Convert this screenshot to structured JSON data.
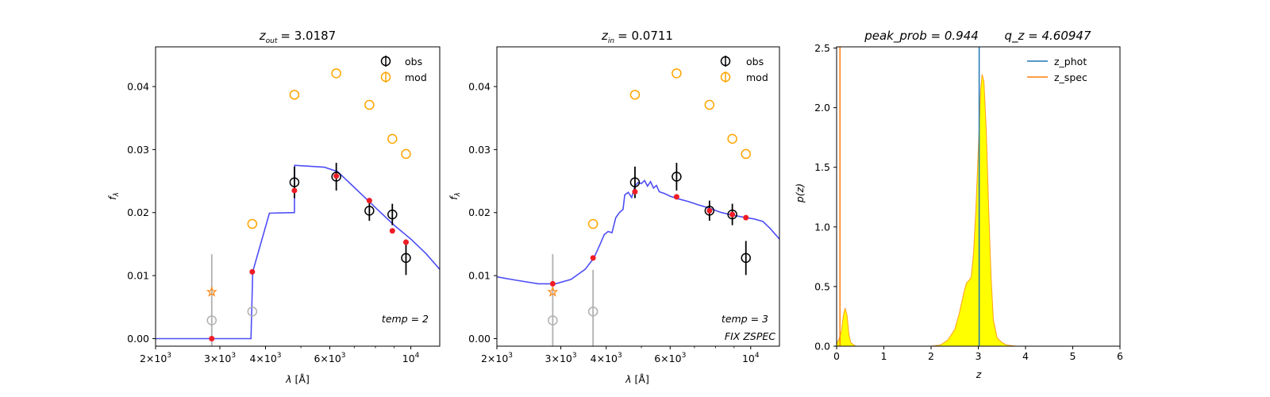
{
  "chart_data": [
    {
      "type": "scatter",
      "title": {
        "var": "z",
        "sub": "out",
        "value": "= 3.0187"
      },
      "xlabel": {
        "lambda": "λ",
        "unit": " [Å]"
      },
      "ylabel": {
        "main": "f",
        "sub": "λ"
      },
      "xscale": "log",
      "xlim": [
        2000,
        12000
      ],
      "ylim": [
        -0.0012,
        0.0463
      ],
      "xticks": [
        {
          "v": 2000,
          "m": "2",
          "e": "3"
        },
        {
          "v": 3000,
          "m": "3",
          "e": "3"
        },
        {
          "v": 4000,
          "m": "4",
          "e": "3"
        },
        {
          "v": 6000,
          "m": "6",
          "e": "3"
        },
        {
          "v": 10000,
          "m": "",
          "e": "4"
        }
      ],
      "yticks": [
        {
          "v": 0.0,
          "l": "0.00"
        },
        {
          "v": 0.01,
          "l": "0.01"
        },
        {
          "v": 0.02,
          "l": "0.02"
        },
        {
          "v": 0.03,
          "l": "0.03"
        },
        {
          "v": 0.04,
          "l": "0.04"
        }
      ],
      "legend": {
        "obs": "obs",
        "mod": "mod"
      },
      "annotations": [
        {
          "text": "temp = 2"
        }
      ],
      "template": [
        [
          2000,
          0
        ],
        [
          3650,
          0
        ],
        [
          3690,
          0.0106
        ],
        [
          4100,
          0.0199
        ],
        [
          4800,
          0.02
        ],
        [
          4810,
          0.0275
        ],
        [
          5800,
          0.0272
        ],
        [
          6300,
          0.0265
        ],
        [
          7000,
          0.024
        ],
        [
          8000,
          0.0208
        ],
        [
          9000,
          0.018
        ],
        [
          10000,
          0.0158
        ],
        [
          11000,
          0.0135
        ],
        [
          12000,
          0.011
        ]
      ],
      "model": [
        [
          2850,
          0.0
        ],
        [
          3680,
          0.0106
        ],
        [
          4800,
          0.0235
        ],
        [
          6250,
          0.0258
        ],
        [
          7700,
          0.0219
        ],
        [
          8900,
          0.0171
        ],
        [
          9700,
          0.0153
        ]
      ],
      "obs": [
        {
          "x": 4800,
          "y": 0.0248,
          "e": 0.0025
        },
        {
          "x": 6250,
          "y": 0.0257,
          "e": 0.0022
        },
        {
          "x": 7700,
          "y": 0.0203,
          "e": 0.0016
        },
        {
          "x": 8900,
          "y": 0.0197,
          "e": 0.0017
        },
        {
          "x": 9700,
          "y": 0.0128,
          "e": 0.0027
        }
      ],
      "obs_faint": [
        {
          "x": 2850,
          "y": 0.0029,
          "e": 0.0105
        },
        {
          "x": 3680,
          "y": 0.0043,
          "e": 0.0
        }
      ],
      "mod_pts": [
        [
          3680,
          0.0182
        ],
        [
          4800,
          0.0387
        ],
        [
          6250,
          0.0421
        ],
        [
          7700,
          0.0371
        ],
        [
          8900,
          0.0317
        ],
        [
          9700,
          0.0293
        ]
      ],
      "star": [
        2850,
        0.0074
      ]
    },
    {
      "type": "scatter",
      "title": {
        "var": "z",
        "sub": "in",
        "value": "= 0.0711"
      },
      "xlabel": {
        "lambda": "λ",
        "unit": " [Å]"
      },
      "ylabel": {
        "main": "f",
        "sub": "λ"
      },
      "xscale": "log",
      "xlim": [
        2000,
        12000
      ],
      "ylim": [
        -0.0012,
        0.0463
      ],
      "xticks": [
        {
          "v": 2000,
          "m": "2",
          "e": "3"
        },
        {
          "v": 3000,
          "m": "3",
          "e": "3"
        },
        {
          "v": 4000,
          "m": "4",
          "e": "3"
        },
        {
          "v": 6000,
          "m": "6",
          "e": "3"
        },
        {
          "v": 10000,
          "m": "",
          "e": "4"
        }
      ],
      "yticks": [
        {
          "v": 0.0,
          "l": "0.00"
        },
        {
          "v": 0.01,
          "l": "0.01"
        },
        {
          "v": 0.02,
          "l": "0.02"
        },
        {
          "v": 0.03,
          "l": "0.03"
        },
        {
          "v": 0.04,
          "l": "0.04"
        }
      ],
      "legend": {
        "obs": "obs",
        "mod": "mod"
      },
      "annotations": [
        {
          "text": "temp = 3"
        },
        {
          "text": "FIX ZSPEC"
        }
      ],
      "template": [
        [
          2000,
          0.0098
        ],
        [
          2300,
          0.0092
        ],
        [
          2600,
          0.0087
        ],
        [
          2900,
          0.0087
        ],
        [
          3200,
          0.0094
        ],
        [
          3500,
          0.011
        ],
        [
          3700,
          0.0128
        ],
        [
          3850,
          0.015
        ],
        [
          3950,
          0.0165
        ],
        [
          4050,
          0.017
        ],
        [
          4150,
          0.0168
        ],
        [
          4250,
          0.0192
        ],
        [
          4350,
          0.02
        ],
        [
          4450,
          0.0205
        ],
        [
          4500,
          0.0228
        ],
        [
          4600,
          0.0232
        ],
        [
          4700,
          0.0224
        ],
        [
          4800,
          0.0242
        ],
        [
          4900,
          0.0248
        ],
        [
          5000,
          0.0246
        ],
        [
          5100,
          0.0251
        ],
        [
          5200,
          0.0242
        ],
        [
          5300,
          0.0249
        ],
        [
          5400,
          0.0239
        ],
        [
          5500,
          0.0243
        ],
        [
          5600,
          0.0233
        ],
        [
          5800,
          0.023
        ],
        [
          6000,
          0.0226
        ],
        [
          6300,
          0.0222
        ],
        [
          6700,
          0.0218
        ],
        [
          7200,
          0.0212
        ],
        [
          7700,
          0.0207
        ],
        [
          8300,
          0.02
        ],
        [
          8900,
          0.0196
        ],
        [
          9500,
          0.0193
        ],
        [
          10200,
          0.019
        ],
        [
          10800,
          0.0186
        ],
        [
          11300,
          0.0175
        ],
        [
          12000,
          0.0158
        ]
      ],
      "model": [
        [
          2850,
          0.0087
        ],
        [
          3680,
          0.0128
        ],
        [
          4800,
          0.0233
        ],
        [
          6250,
          0.0225
        ],
        [
          7700,
          0.0203
        ],
        [
          8900,
          0.0197
        ],
        [
          9700,
          0.0192
        ]
      ],
      "obs": [
        {
          "x": 4800,
          "y": 0.0248,
          "e": 0.0025
        },
        {
          "x": 6250,
          "y": 0.0257,
          "e": 0.0022
        },
        {
          "x": 7700,
          "y": 0.0203,
          "e": 0.0016
        },
        {
          "x": 8900,
          "y": 0.0197,
          "e": 0.0017
        },
        {
          "x": 9700,
          "y": 0.0128,
          "e": 0.0027
        }
      ],
      "obs_faint": [
        {
          "x": 2850,
          "y": 0.0029,
          "e": 0.0105
        },
        {
          "x": 3680,
          "y": 0.0043,
          "e": 0.0066
        }
      ],
      "mod_pts": [
        [
          3680,
          0.0182
        ],
        [
          4800,
          0.0387
        ],
        [
          6250,
          0.0421
        ],
        [
          7700,
          0.0371
        ],
        [
          8900,
          0.0317
        ],
        [
          9700,
          0.0293
        ]
      ],
      "star": [
        2850,
        0.0074
      ]
    },
    {
      "type": "area",
      "title": {
        "left": "peak_prob = 0.944",
        "right": "q_z = 4.60947"
      },
      "xlabel": "z",
      "ylabel": "p(z)",
      "xlim": [
        0,
        6
      ],
      "ylim": [
        0,
        2.51
      ],
      "xticks": [
        0,
        1,
        2,
        3,
        4,
        5,
        6
      ],
      "yticks": [
        {
          "v": 0.0,
          "l": "0.0"
        },
        {
          "v": 0.5,
          "l": "0.5"
        },
        {
          "v": 1.0,
          "l": "1.0"
        },
        {
          "v": 1.5,
          "l": "1.5"
        },
        {
          "v": 2.0,
          "l": "2.0"
        },
        {
          "v": 2.5,
          "l": "2.5"
        }
      ],
      "legend": [
        {
          "name": "z_phot",
          "color": "#1f77b4"
        },
        {
          "name": "z_spec",
          "color": "#ff7f0e"
        }
      ],
      "z_phot": 3.0187,
      "z_spec": 0.0711,
      "pz": [
        [
          0,
          0.02
        ],
        [
          0.05,
          0.06
        ],
        [
          0.1,
          0.12
        ],
        [
          0.14,
          0.25
        ],
        [
          0.18,
          0.32
        ],
        [
          0.22,
          0.26
        ],
        [
          0.26,
          0.1
        ],
        [
          0.3,
          0.03
        ],
        [
          0.4,
          0.0
        ],
        [
          2.0,
          0.0
        ],
        [
          2.2,
          0.01
        ],
        [
          2.35,
          0.05
        ],
        [
          2.5,
          0.14
        ],
        [
          2.6,
          0.28
        ],
        [
          2.7,
          0.46
        ],
        [
          2.75,
          0.53
        ],
        [
          2.8,
          0.55
        ],
        [
          2.85,
          0.58
        ],
        [
          2.9,
          0.78
        ],
        [
          2.95,
          1.15
        ],
        [
          3.0,
          1.65
        ],
        [
          3.05,
          2.15
        ],
        [
          3.08,
          2.28
        ],
        [
          3.12,
          2.22
        ],
        [
          3.17,
          1.8
        ],
        [
          3.22,
          1.15
        ],
        [
          3.27,
          0.58
        ],
        [
          3.32,
          0.22
        ],
        [
          3.4,
          0.07
        ],
        [
          3.5,
          0.03
        ],
        [
          3.6,
          0.01
        ],
        [
          3.8,
          0.0
        ],
        [
          6.0,
          0.0
        ]
      ]
    }
  ],
  "colors": {
    "template": "#3b3bf5",
    "model_point": "#ee1c25",
    "obs": "#000000",
    "faint": "#b0b0b0",
    "mod_ring": "#ffa500",
    "star": "#ff8c1a",
    "pz_fill": "#ffff00",
    "pz_line": "#ff9f1a",
    "z_phot": "#1f77b4",
    "z_spec": "#ff7f0e"
  }
}
